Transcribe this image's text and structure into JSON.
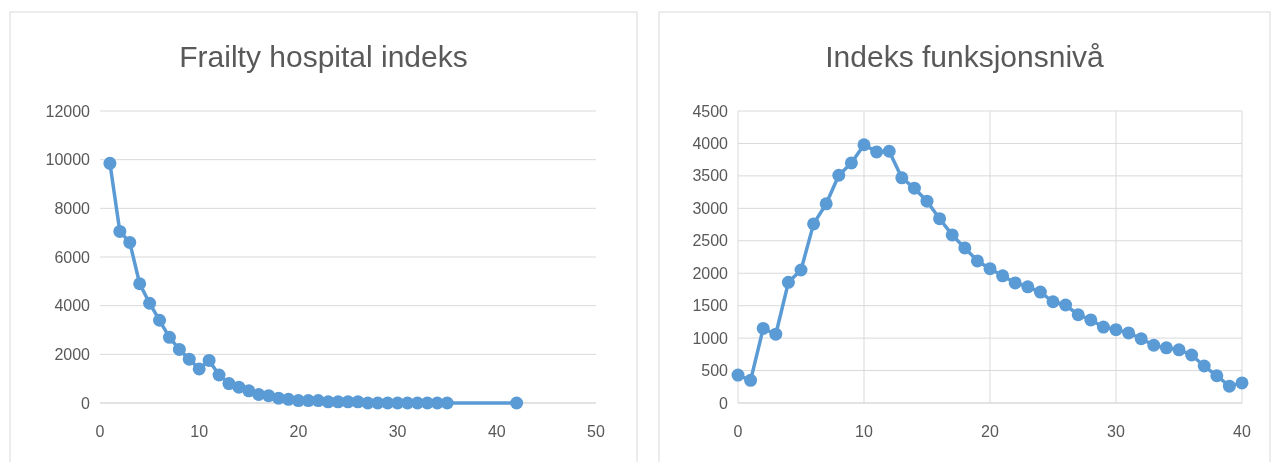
{
  "chart_data": [
    {
      "type": "line",
      "title": "Frailty hospital indeks",
      "x": [
        1,
        2,
        3,
        4,
        5,
        6,
        7,
        8,
        9,
        10,
        11,
        12,
        13,
        14,
        15,
        16,
        17,
        18,
        19,
        20,
        21,
        22,
        23,
        24,
        25,
        26,
        27,
        28,
        29,
        30,
        31,
        32,
        33,
        34,
        35,
        42
      ],
      "series": [
        {
          "color": "#5b9bd5",
          "values": [
            9850,
            7050,
            6600,
            4900,
            4100,
            3400,
            2700,
            2200,
            1800,
            1400,
            1750,
            1150,
            800,
            650,
            500,
            350,
            300,
            200,
            150,
            100,
            100,
            100,
            50,
            50,
            50,
            50,
            0,
            0,
            0,
            0,
            0,
            0,
            0,
            0,
            0,
            0
          ]
        }
      ],
      "xlim": [
        0,
        50
      ],
      "xticks": [
        0,
        10,
        20,
        30,
        40,
        50
      ],
      "ylim": [
        0,
        12000
      ],
      "yticks": [
        0,
        2000,
        4000,
        6000,
        8000,
        10000,
        12000
      ],
      "grid": "y",
      "marker": "circle",
      "line_style": "solid"
    },
    {
      "type": "line",
      "title": "Indeks funksjonsnivå",
      "x": [
        0,
        1,
        2,
        3,
        4,
        5,
        6,
        7,
        8,
        9,
        10,
        11,
        12,
        13,
        14,
        15,
        16,
        17,
        18,
        19,
        20,
        21,
        22,
        23,
        24,
        25,
        26,
        27,
        28,
        29,
        30,
        31,
        32,
        33,
        34,
        35,
        36,
        37,
        38,
        39,
        40
      ],
      "series": [
        {
          "color": "#5b9bd5",
          "values": [
            430,
            350,
            1150,
            1060,
            1860,
            2050,
            2760,
            3070,
            3510,
            3700,
            3980,
            3870,
            3880,
            3470,
            3310,
            3110,
            2840,
            2590,
            2390,
            2190,
            2070,
            1960,
            1850,
            1790,
            1710,
            1560,
            1510,
            1360,
            1280,
            1170,
            1130,
            1080,
            990,
            890,
            850,
            820,
            740,
            570,
            420,
            260,
            310
          ]
        }
      ],
      "xlim": [
        0,
        40
      ],
      "xticks": [
        0,
        10,
        20,
        30,
        40
      ],
      "ylim": [
        0,
        4500
      ],
      "yticks": [
        0,
        500,
        1000,
        1500,
        2000,
        2500,
        3000,
        3500,
        4000,
        4500
      ],
      "grid": true,
      "marker": "circle",
      "line_style": "solid"
    }
  ]
}
